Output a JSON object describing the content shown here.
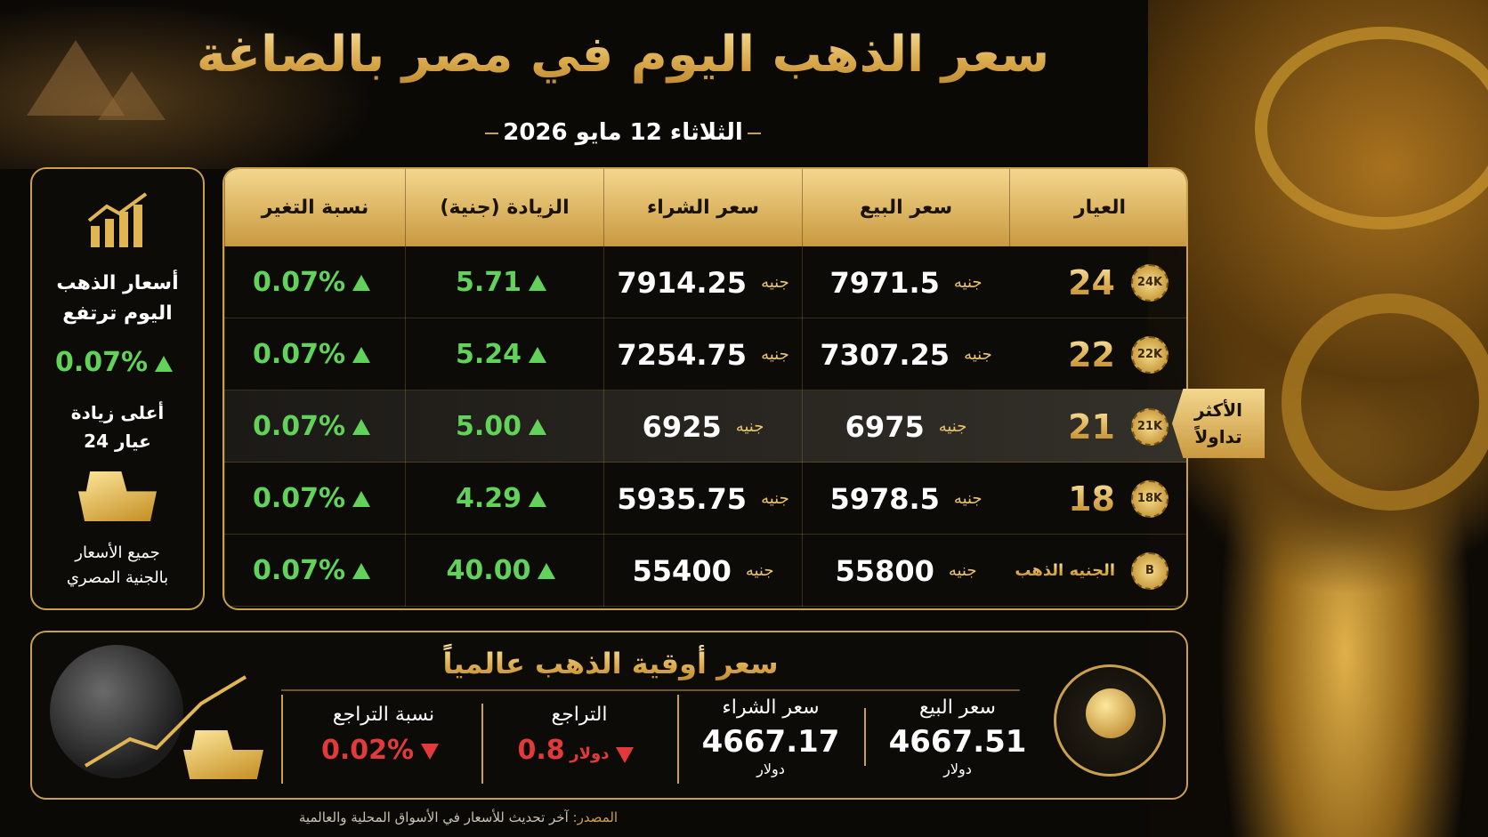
{
  "header": {
    "title": "سعر الذهب اليوم في مصر بالصاغة",
    "date": "الثلاثاء 12 مايو 2026"
  },
  "table": {
    "columns": [
      "العيار",
      "سعر البيع",
      "سعر الشراء",
      "الزيادة (جنية)",
      "نسبة التغير"
    ],
    "unit": "جنيه",
    "rows": [
      {
        "karat": "24",
        "badge": "24K",
        "sell": "7971.5",
        "buy": "7914.25",
        "increase": "5.71",
        "change": "0.07%"
      },
      {
        "karat": "22",
        "badge": "22K",
        "sell": "7307.25",
        "buy": "7254.75",
        "increase": "5.24",
        "change": "0.07%"
      },
      {
        "karat": "21",
        "badge": "21K",
        "sell": "6975",
        "buy": "6925",
        "increase": "5.00",
        "change": "0.07%"
      },
      {
        "karat": "18",
        "badge": "18K",
        "sell": "5978.5",
        "buy": "5935.75",
        "increase": "4.29",
        "change": "0.07%"
      },
      {
        "karat": "الجنيه الذهب",
        "badge": "B",
        "sell": "55800",
        "buy": "55400",
        "increase": "40.00",
        "change": "0.07%"
      }
    ],
    "highlight": [
      "الأكثر",
      "تداولاً"
    ]
  },
  "sidebar": {
    "title": [
      "أسعار الذهب",
      "اليوم ترتفع"
    ],
    "change": "0.07%",
    "note": [
      "أعلى زيادة",
      "عيار 24"
    ],
    "footer": [
      "جميع الأسعار",
      "بالجنية المصري"
    ]
  },
  "global": {
    "title": "سعر أوقية الذهب عالمياً",
    "sell": {
      "label": "سعر البيع",
      "value": "4667.51",
      "unit": "دولار"
    },
    "buy": {
      "label": "سعر الشراء",
      "value": "4667.17",
      "unit": "دولار"
    },
    "decline": {
      "label": "التراجع",
      "value": "0.8",
      "unit": "دولار"
    },
    "decline_pct": {
      "label": "نسبة التراجع",
      "value": "0.02%"
    }
  },
  "source": {
    "label": "المصدر:",
    "text": "آخر تحديث للأسعار في الأسواق المحلية والعالمية"
  }
}
